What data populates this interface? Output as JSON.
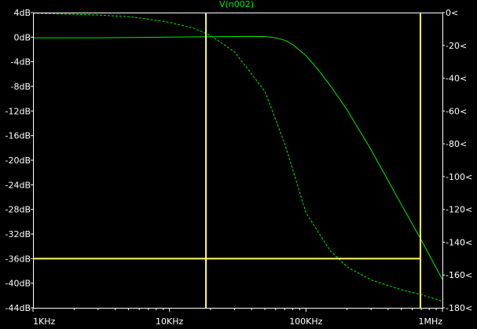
{
  "colors": {
    "background": "#000000",
    "frame": "#ffffff",
    "gain": "#00ee00",
    "phase": "#00ee00",
    "cursor": "#ffff66",
    "tick_text": "#ffffff",
    "label": "#00ee00"
  },
  "chart_data": {
    "type": "line",
    "title": "V(n002)",
    "x_scale": "log",
    "xlim": [
      1000,
      1000000
    ],
    "ylim_left": [
      -44,
      4
    ],
    "ylim_right": [
      -180,
      0
    ],
    "x_ticks": [
      {
        "value": 1000,
        "label": "1KHz"
      },
      {
        "value": 10000,
        "label": "10KHz"
      },
      {
        "value": 100000,
        "label": "100KHz"
      },
      {
        "value": 1000000,
        "label": "1MHz"
      }
    ],
    "y_ticks_left": [
      {
        "value": 4,
        "label": "4dB"
      },
      {
        "value": 0,
        "label": "0dB"
      },
      {
        "value": -4,
        "label": "-4dB"
      },
      {
        "value": -8,
        "label": "-8dB"
      },
      {
        "value": -12,
        "label": "-12dB"
      },
      {
        "value": -16,
        "label": "-16dB"
      },
      {
        "value": -20,
        "label": "-20dB"
      },
      {
        "value": -24,
        "label": "-24dB"
      },
      {
        "value": -28,
        "label": "-28dB"
      },
      {
        "value": -32,
        "label": "-32dB"
      },
      {
        "value": -36,
        "label": "-36dB"
      },
      {
        "value": -40,
        "label": "-40dB"
      },
      {
        "value": -44,
        "label": "-44dB"
      }
    ],
    "y_ticks_right": [
      {
        "value": 0,
        "label": "0<"
      },
      {
        "value": -20,
        "label": "-20<"
      },
      {
        "value": -40,
        "label": "-40<"
      },
      {
        "value": -60,
        "label": "-60<"
      },
      {
        "value": -80,
        "label": "-80<"
      },
      {
        "value": -100,
        "label": "-100<"
      },
      {
        "value": -120,
        "label": "-120<"
      },
      {
        "value": -140,
        "label": "-140<"
      },
      {
        "value": -160,
        "label": "-160<"
      },
      {
        "value": -180,
        "label": "-180<"
      }
    ],
    "series": [
      {
        "axis": "left",
        "style": "solid",
        "x": [
          1000,
          3000,
          10000,
          30000,
          50000,
          60000,
          70000,
          80000,
          100000,
          120000,
          150000,
          200000,
          300000,
          500000,
          700000,
          1000000
        ],
        "y": [
          -0.1,
          -0.1,
          0.0,
          0.1,
          0.1,
          -0.1,
          -0.5,
          -1.2,
          -3.0,
          -5.0,
          -7.8,
          -11.8,
          -18.3,
          -27.2,
          -33.0,
          -39.4
        ]
      },
      {
        "axis": "right",
        "style": "dashed",
        "x": [
          1000,
          2000,
          3000,
          5000,
          7000,
          10000,
          15000,
          20000,
          30000,
          50000,
          70000,
          100000,
          150000,
          200000,
          300000,
          500000,
          700000,
          1000000
        ],
        "y": [
          -0.5,
          -1.0,
          -1.5,
          -2.5,
          -4,
          -6,
          -9.5,
          -14,
          -24,
          -48,
          -80,
          -122,
          -145,
          -155,
          -163,
          -169,
          -172,
          -176
        ]
      }
    ],
    "cursors": [
      {
        "x": 18500,
        "y": -36
      },
      {
        "x": 690000,
        "y": -36
      }
    ]
  }
}
